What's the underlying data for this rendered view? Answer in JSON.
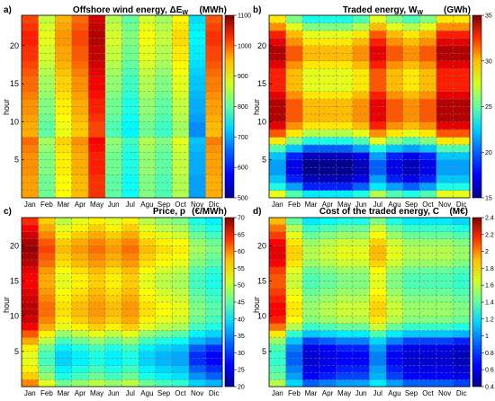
{
  "colors": {
    "colormap": [
      "#00008f",
      "#0000ff",
      "#00a0ff",
      "#00ffff",
      "#80ff80",
      "#ffff00",
      "#ff9000",
      "#ff0000",
      "#800000"
    ],
    "gridline": "#7a7a7a"
  },
  "chart_data": [
    {
      "type": "heatmap",
      "panel_letter": "a)",
      "title": "Offshore wind energy, ΔE",
      "title_sub": "W",
      "title_unit": "(MWh)",
      "xlabel": "",
      "ylabel": "hour",
      "categories": [
        "Jan",
        "Feb",
        "Mar",
        "Apr",
        "May",
        "Jun",
        "Jul",
        "Agu",
        "Sep",
        "Oct",
        "Nov",
        "Dic"
      ],
      "y_range": [
        0,
        24
      ],
      "y_ticks": [
        5,
        10,
        15,
        20
      ],
      "colorbar": {
        "min": 500,
        "max": 1100,
        "ticks": [
          500,
          600,
          700,
          800,
          900,
          1000,
          1100
        ]
      },
      "monthly_mean": [
        970,
        820,
        905,
        950,
        1030,
        810,
        760,
        830,
        800,
        860,
        680,
        960
      ],
      "hourly_profile": [
        -30,
        -30,
        -30,
        -20,
        -20,
        -20,
        -10,
        0,
        -40,
        -40,
        -30,
        -20,
        -20,
        -10,
        0,
        0,
        10,
        20,
        30,
        30,
        40,
        40,
        30,
        20
      ],
      "grid": "on"
    },
    {
      "type": "heatmap",
      "panel_letter": "b)",
      "title": "Traded energy, W",
      "title_sub": "W",
      "title_unit": "(GWh)",
      "xlabel": "",
      "ylabel": "hour",
      "categories": [
        "Jan",
        "Feb",
        "Mar",
        "Apr",
        "May",
        "Jun",
        "Jul",
        "Agu",
        "Sep",
        "Oct",
        "Nov",
        "Dic"
      ],
      "y_range": [
        0,
        24
      ],
      "y_ticks": [
        5,
        10,
        15,
        20
      ],
      "colorbar": {
        "min": 15,
        "max": 35,
        "ticks": [
          15,
          20,
          25,
          30,
          35
        ]
      },
      "monthly_mean": [
        30,
        27,
        25,
        25,
        25,
        26,
        29,
        27,
        26,
        27,
        30,
        30
      ],
      "hourly_profile": [
        -3,
        -7,
        -9,
        -10,
        -10,
        -9,
        -6,
        -2,
        1,
        3,
        4,
        4,
        4,
        3,
        2,
        2,
        2,
        3,
        4,
        4,
        3,
        2,
        0,
        -2
      ],
      "grid": "on"
    },
    {
      "type": "heatmap",
      "panel_letter": "c)",
      "title": "Price, p",
      "title_sub": "",
      "title_unit": "(€/MWh)",
      "xlabel": "",
      "ylabel": "hour",
      "categories": [
        "Jan",
        "Feb",
        "Mar",
        "Apr",
        "May",
        "Jun",
        "Jul",
        "Agu",
        "Sep",
        "Oct",
        "Nov",
        "Dic"
      ],
      "y_range": [
        0,
        24
      ],
      "y_ticks": [
        5,
        10,
        15,
        20
      ],
      "colorbar": {
        "min": 20,
        "max": 70,
        "ticks": [
          20,
          25,
          30,
          35,
          40,
          45,
          50,
          55,
          60,
          65,
          70
        ]
      },
      "monthly_mean": [
        62,
        54,
        48,
        50,
        52,
        50,
        52,
        48,
        46,
        45,
        40,
        38
      ],
      "hourly_profile": [
        -4,
        -8,
        -10,
        -12,
        -12,
        -10,
        -6,
        -2,
        2,
        4,
        5,
        5,
        4,
        3,
        2,
        2,
        3,
        5,
        6,
        7,
        6,
        4,
        2,
        0
      ],
      "grid": "on"
    },
    {
      "type": "heatmap",
      "panel_letter": "d)",
      "title": "Cost of the traded energy, C",
      "title_sub": "",
      "title_unit": "(M€)",
      "xlabel": "",
      "ylabel": "hour",
      "categories": [
        "Jan",
        "Feb",
        "Mar",
        "Apr",
        "May",
        "Jun",
        "Jul",
        "Agu",
        "Sep",
        "Oct",
        "Nov",
        "Dic"
      ],
      "y_range": [
        0,
        24
      ],
      "y_ticks": [
        5,
        10,
        15,
        20
      ],
      "colorbar": {
        "min": 0.4,
        "max": 2.4,
        "ticks": [
          0.4,
          0.6,
          0.8,
          1,
          1.2,
          1.4,
          1.6,
          1.8,
          2,
          2.2,
          2.4
        ]
      },
      "monthly_mean": [
        1.9,
        1.45,
        1.2,
        1.25,
        1.3,
        1.3,
        1.5,
        1.3,
        1.2,
        1.2,
        1.2,
        1.15
      ],
      "hourly_profile": [
        -0.4,
        -0.55,
        -0.6,
        -0.65,
        -0.65,
        -0.6,
        -0.45,
        -0.2,
        0.05,
        0.2,
        0.25,
        0.25,
        0.2,
        0.15,
        0.1,
        0.1,
        0.15,
        0.25,
        0.3,
        0.3,
        0.25,
        0.15,
        0.05,
        -0.1
      ],
      "grid": "on"
    }
  ]
}
